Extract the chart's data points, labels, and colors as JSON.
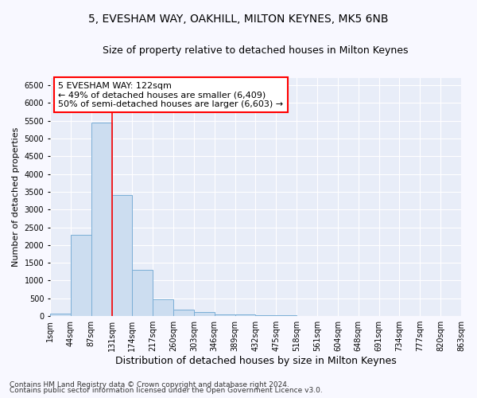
{
  "title1": "5, EVESHAM WAY, OAKHILL, MILTON KEYNES, MK5 6NB",
  "title2": "Size of property relative to detached houses in Milton Keynes",
  "xlabel": "Distribution of detached houses by size in Milton Keynes",
  "ylabel": "Number of detached properties",
  "footer1": "Contains HM Land Registry data © Crown copyright and database right 2024.",
  "footer2": "Contains public sector information licensed under the Open Government Licence v3.0.",
  "bin_labels": [
    "1sqm",
    "44sqm",
    "87sqm",
    "131sqm",
    "174sqm",
    "217sqm",
    "260sqm",
    "303sqm",
    "346sqm",
    "389sqm",
    "432sqm",
    "475sqm",
    "518sqm",
    "561sqm",
    "604sqm",
    "648sqm",
    "691sqm",
    "734sqm",
    "777sqm",
    "820sqm",
    "863sqm"
  ],
  "bar_values": [
    70,
    2280,
    5450,
    3400,
    1300,
    480,
    170,
    110,
    55,
    40,
    30,
    25,
    0,
    0,
    0,
    0,
    0,
    0,
    0,
    0
  ],
  "bar_color": "#ccddf0",
  "bar_edge_color": "#7aaed6",
  "vline_x_index": 3,
  "vline_color": "red",
  "annotation_text": "5 EVESHAM WAY: 122sqm\n← 49% of detached houses are smaller (6,409)\n50% of semi-detached houses are larger (6,603) →",
  "annotation_box_facecolor": "white",
  "annotation_box_edgecolor": "red",
  "ylim": [
    0,
    6700
  ],
  "yticks": [
    0,
    500,
    1000,
    1500,
    2000,
    2500,
    3000,
    3500,
    4000,
    4500,
    5000,
    5500,
    6000,
    6500
  ],
  "fig_bg_color": "#f8f8ff",
  "plot_bg_color": "#e8edf8",
  "grid_color": "white",
  "title1_fontsize": 10,
  "title2_fontsize": 9,
  "xlabel_fontsize": 9,
  "ylabel_fontsize": 8,
  "tick_fontsize": 7,
  "annotation_fontsize": 8,
  "footer_fontsize": 6.5
}
